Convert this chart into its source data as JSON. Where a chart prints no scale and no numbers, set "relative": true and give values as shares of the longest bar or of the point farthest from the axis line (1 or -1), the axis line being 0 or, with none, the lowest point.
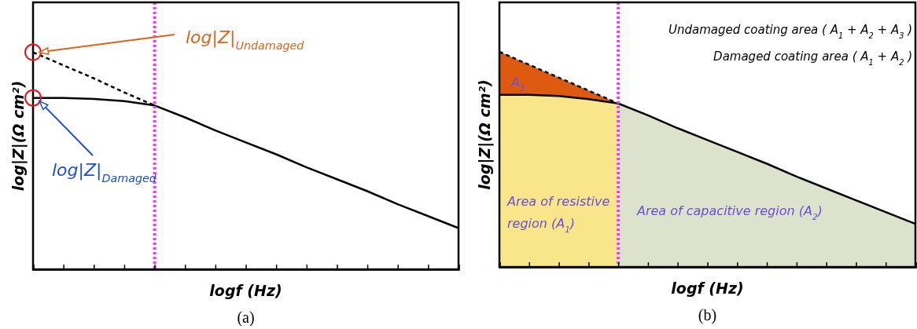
{
  "chart_data": [
    {
      "type": "line",
      "title": "(a)",
      "xlabel": "logf (Hz)",
      "ylabel": "log|Z|(Ω cm²)",
      "relative": true,
      "categories": [
        null,
        null,
        null,
        null,
        null,
        null,
        null,
        null,
        null,
        null,
        null,
        null,
        null,
        null,
        null
      ],
      "series": [
        {
          "color": "#000000",
          "line_style": "solid",
          "values": [
            0.79,
            0.79,
            0.785,
            0.775,
            0.755,
            0.7,
            0.64,
            0.585,
            0.53,
            0.47,
            0.415,
            0.36,
            0.3,
            0.245,
            0.19
          ]
        },
        {
          "color": "#000000",
          "line_style": "dashed",
          "values": [
            1,
            0.94,
            0.88,
            0.815,
            0.755,
            null,
            null,
            null,
            null,
            null,
            null,
            null,
            null,
            null,
            null
          ]
        }
      ],
      "annotations": [
        "log|Z|$_{Undamaged}$",
        "log|Z|$_{Damaged}$"
      ]
    },
    {
      "type": "line",
      "title": "(b)",
      "xlabel": "logf (Hz)",
      "ylabel": "log|Z|(Ω cm²)",
      "relative": true,
      "categories": [
        null,
        null,
        null,
        null,
        null,
        null,
        null,
        null,
        null,
        null,
        null,
        null,
        null,
        null,
        null
      ],
      "series": [
        {
          "type": "area",
          "color": "#f9e68a",
          "values": [
            0.8,
            0.8,
            0.795,
            0.78,
            0.76,
            null,
            null,
            null,
            null,
            null,
            null,
            null,
            null,
            null,
            null
          ]
        },
        {
          "type": "area",
          "color": "#dde2cc",
          "values": [
            null,
            null,
            null,
            null,
            0.76,
            0.705,
            0.645,
            0.59,
            0.535,
            0.48,
            0.42,
            0.365,
            0.31,
            0.255,
            0.2
          ]
        },
        {
          "color": "#000000",
          "line_style": "solid",
          "values": [
            0.8,
            0.8,
            0.795,
            0.78,
            0.76,
            0.705,
            0.645,
            0.59,
            0.535,
            0.48,
            0.42,
            0.365,
            0.31,
            0.255,
            0.2
          ]
        },
        {
          "color": "#000000",
          "line_style": "dashed",
          "values": [
            1,
            0.94,
            0.88,
            0.82,
            0.76,
            null,
            null,
            null,
            null,
            null,
            null,
            null,
            null,
            null,
            null
          ]
        }
      ],
      "annotations": [
        "Undamaged coating area ( A$_{1}$ + A$_{2}$ + A$_{3}$ )",
        "Damaged coating area ( A$_{1}$ + A$_{2}$ )",
        "A$_{3}$",
        "Area of resistive\nregion (A$_{1}$)",
        "Area of capacitive region (A$_{2}$)"
      ]
    }
  ]
}
